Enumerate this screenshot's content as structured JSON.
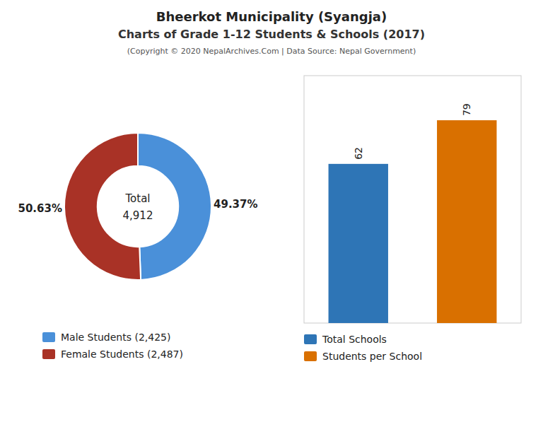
{
  "chart_data": [
    {
      "type": "pie",
      "title": "Bheerkot Municipality (Syangja)",
      "subtitle": "Charts of Grade 1-12 Students & Schools (2017)",
      "annotations": [
        "(Copyright © 2020 NepalArchives.Com | Data Source: Nepal Government)",
        "Total",
        "4,912"
      ],
      "categories": [
        "Male Students (2,425)",
        "Female Students (2,487)"
      ],
      "values": [
        49.37,
        50.63
      ],
      "value_labels": [
        "49.37%",
        "50.63%"
      ],
      "colors": [
        "#4A90D9",
        "#A93226"
      ],
      "data_labels": true,
      "legend": "bottom"
    },
    {
      "type": "bar",
      "categories": [
        "Total Schools",
        "Students per School"
      ],
      "values": [
        62,
        79
      ],
      "colors": [
        "#2E75B6",
        "#D97000"
      ],
      "ylim": [
        0,
        96.38
      ],
      "tick_labels": false,
      "data_labels": true,
      "grid": false,
      "legend": "bottom"
    }
  ]
}
